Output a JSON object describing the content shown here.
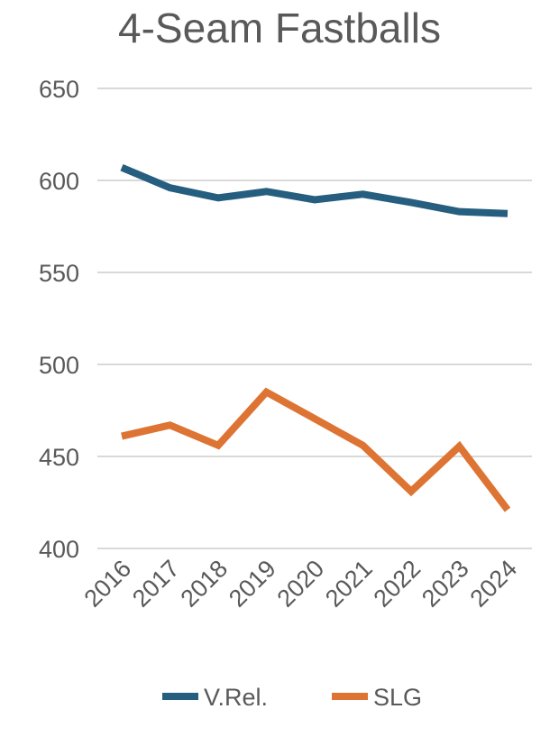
{
  "chart_data": {
    "type": "line",
    "title": "4-Seam Fastballs",
    "xlabel": "",
    "ylabel": "",
    "categories": [
      "2016",
      "2017",
      "2018",
      "2019",
      "2020",
      "2021",
      "2022",
      "2023",
      "2024"
    ],
    "ylim": [
      400,
      650
    ],
    "yticks": [
      400,
      450,
      500,
      550,
      600,
      650
    ],
    "grid": true,
    "legend_position": "bottom",
    "series": [
      {
        "name": "V.Rel.",
        "color": "#255e7e",
        "values": [
          607,
          596,
          590.5,
          594,
          589.5,
          592.5,
          588,
          583,
          582
        ]
      },
      {
        "name": "SLG",
        "color": "#dd7433",
        "values": [
          461,
          467,
          456,
          485,
          470.5,
          456,
          431,
          455.5,
          421
        ]
      }
    ]
  }
}
